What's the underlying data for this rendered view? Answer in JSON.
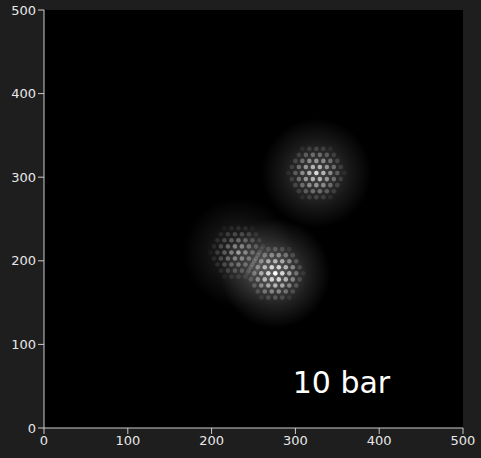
{
  "chart_data": {
    "type": "image",
    "x": [
      325,
      232,
      276
    ],
    "y": [
      305,
      210,
      185
    ],
    "intensity": [
      0.8,
      0.5,
      1.0
    ],
    "color": "#ffffff",
    "xlim": [
      0,
      500
    ],
    "ylim": [
      0,
      500
    ],
    "xticks": [
      0,
      100,
      200,
      300,
      400,
      500
    ],
    "yticks": [
      0,
      100,
      200,
      300,
      400,
      500
    ],
    "annotations": [
      {
        "text": "10 bar",
        "x": 355,
        "y": 55
      }
    ]
  }
}
